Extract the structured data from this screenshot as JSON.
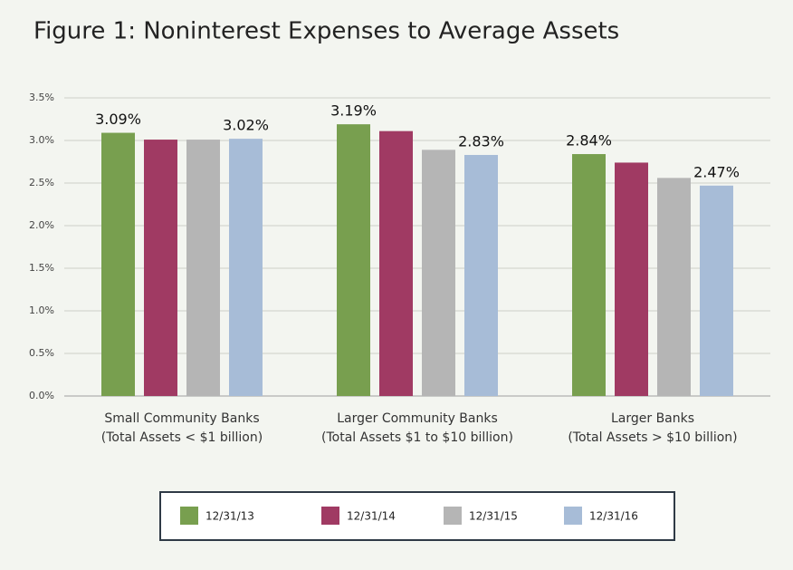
{
  "chart_data": {
    "type": "bar",
    "title": "Figure 1: Noninterest Expenses to Average Assets",
    "categories": [
      [
        "Small Community Banks",
        "(Total Assets < $1 billion)"
      ],
      [
        "Larger Community Banks",
        "(Total Assets $1 to $10 billion)"
      ],
      [
        "Larger Banks",
        "(Total Assets > $10 billion)"
      ]
    ],
    "series": [
      {
        "name": "12/31/13",
        "color": "#789f4f",
        "values": [
          3.09,
          3.19,
          2.84
        ],
        "value_labels": [
          "3.09%",
          "3.19%",
          "2.84%"
        ]
      },
      {
        "name": "12/31/14",
        "color": "#a03a63",
        "values": [
          3.01,
          3.11,
          2.74
        ]
      },
      {
        "name": "12/31/15",
        "color": "#b5b5b5",
        "values": [
          3.01,
          2.89,
          2.56
        ]
      },
      {
        "name": "12/31/16",
        "color": "#a7bcd7",
        "values": [
          3.02,
          2.83,
          2.47
        ],
        "value_labels": [
          "3.02%",
          "2.83%",
          "2.47%"
        ]
      }
    ],
    "ylim": [
      0,
      3.5
    ],
    "yticks": [
      {
        "value": 0,
        "label": "0.0%"
      },
      {
        "value": 0.5,
        "label": "0.5%"
      },
      {
        "value": 1,
        "label": "1.0%"
      },
      {
        "value": 1.5,
        "label": "1.5%"
      },
      {
        "value": 2,
        "label": "2.0%"
      },
      {
        "value": 2.5,
        "label": "2.5%"
      },
      {
        "value": 3,
        "label": "3.0%"
      },
      {
        "value": 3.5,
        "label": "3.5%"
      }
    ],
    "grid": true,
    "legend": "bottom"
  }
}
